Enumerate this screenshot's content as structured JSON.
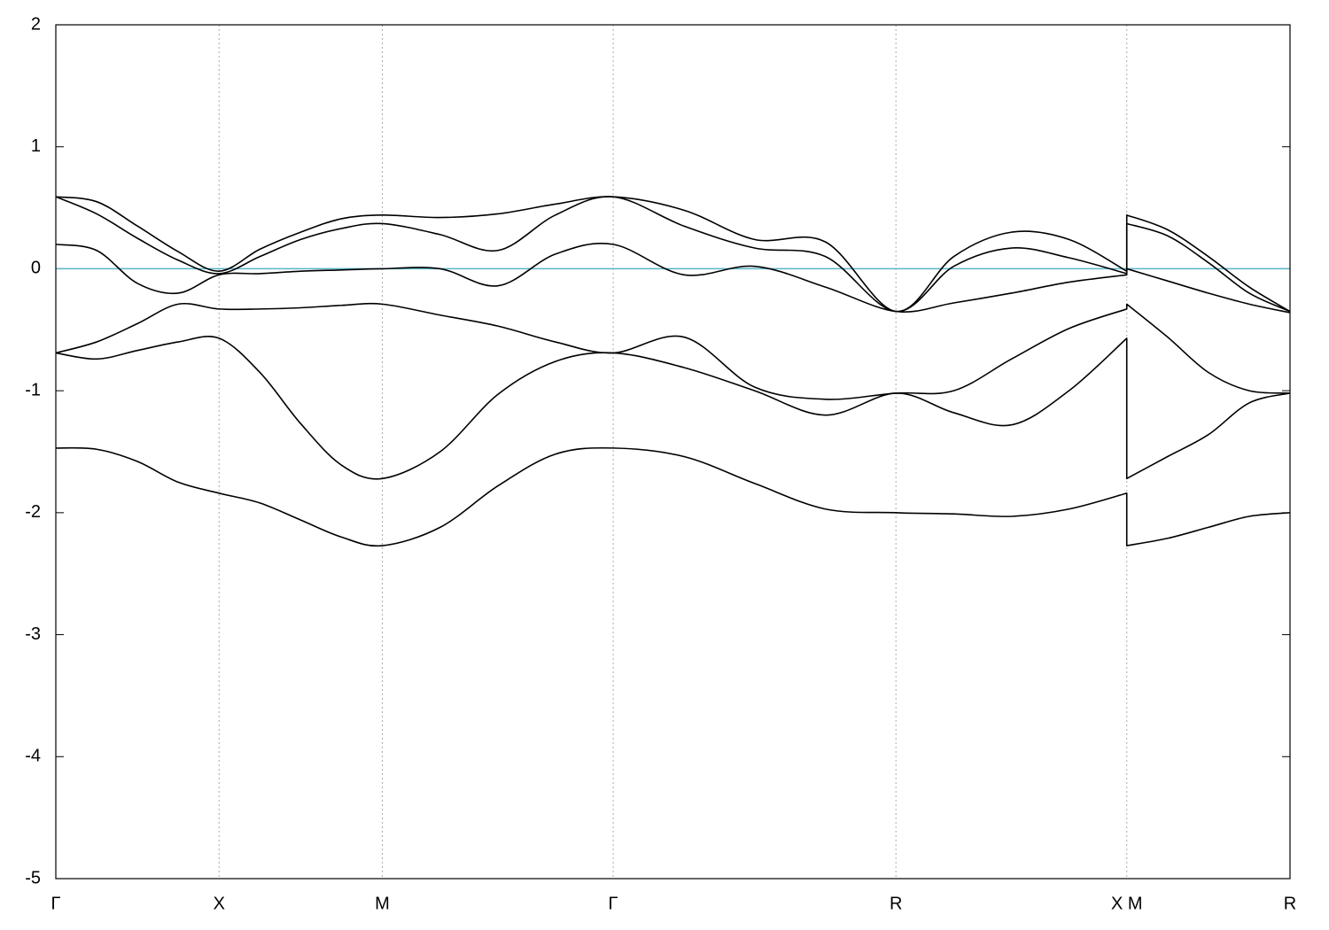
{
  "chart_data": {
    "type": "line",
    "xlim": [
      0,
      3.78
    ],
    "ylim": [
      -5,
      2
    ],
    "yticks": [
      -5,
      -4,
      -3,
      -2,
      -1,
      0,
      1,
      2
    ],
    "xticks": [
      {
        "value": 0,
        "label": "Γ"
      },
      {
        "value": 0.5,
        "label": "X"
      },
      {
        "value": 1.0,
        "label": "M"
      },
      {
        "value": 1.707,
        "label": "Γ"
      },
      {
        "value": 2.573,
        "label": "R"
      },
      {
        "value": 3.28,
        "label": "X M"
      },
      {
        "value": 3.78,
        "label": "R"
      }
    ],
    "xgrid": true,
    "reference_line": {
      "value": 0,
      "color": "#5ab4c8"
    },
    "x": [
      0,
      0.125,
      0.25,
      0.375,
      0.5,
      0.625,
      0.75,
      0.875,
      1.0,
      1.177,
      1.354,
      1.53,
      1.707,
      1.924,
      2.14,
      2.357,
      2.573,
      2.75,
      2.927,
      3.103,
      3.28,
      3.28,
      3.405,
      3.53,
      3.655,
      3.78
    ],
    "series": [
      {
        "color": "#000000",
        "values": [
          -1.47,
          -1.48,
          -1.58,
          -1.75,
          -1.84,
          -1.92,
          -2.06,
          -2.2,
          -2.27,
          -2.12,
          -1.78,
          -1.52,
          -1.47,
          -1.54,
          -1.76,
          -1.97,
          -2.0,
          -2.01,
          -2.03,
          -1.97,
          -1.84,
          -2.27,
          -2.21,
          -2.12,
          -2.03,
          -2.0
        ]
      },
      {
        "color": "#000000",
        "values": [
          -0.69,
          -0.74,
          -0.67,
          -0.6,
          -0.57,
          -0.85,
          -1.27,
          -1.61,
          -1.72,
          -1.5,
          -1.03,
          -0.76,
          -0.69,
          -0.81,
          -1.0,
          -1.2,
          -1.02,
          -1.18,
          -1.28,
          -1.0,
          -0.57,
          -1.72,
          -1.54,
          -1.36,
          -1.1,
          -1.02
        ]
      },
      {
        "color": "#000000",
        "values": [
          -0.69,
          -0.6,
          -0.45,
          -0.29,
          -0.33,
          -0.33,
          -0.32,
          -0.3,
          -0.29,
          -0.38,
          -0.47,
          -0.6,
          -0.69,
          -0.56,
          -0.97,
          -1.07,
          -1.02,
          -1.0,
          -0.74,
          -0.49,
          -0.33,
          -0.29,
          -0.56,
          -0.85,
          -1.0,
          -1.02
        ]
      },
      {
        "color": "#000000",
        "values": [
          0.2,
          0.15,
          -0.12,
          -0.2,
          -0.05,
          -0.04,
          -0.02,
          -0.01,
          0.0,
          0.0,
          -0.14,
          0.12,
          0.2,
          -0.05,
          0.02,
          -0.15,
          -0.35,
          -0.28,
          -0.2,
          -0.11,
          -0.05,
          0.0,
          -0.1,
          -0.2,
          -0.29,
          -0.36
        ]
      },
      {
        "color": "#000000",
        "values": [
          0.59,
          0.45,
          0.25,
          0.07,
          -0.04,
          0.1,
          0.24,
          0.33,
          0.37,
          0.28,
          0.15,
          0.44,
          0.59,
          0.35,
          0.17,
          0.1,
          -0.35,
          0.02,
          0.17,
          0.09,
          -0.04,
          0.37,
          0.27,
          0.05,
          -0.2,
          -0.35
        ]
      },
      {
        "color": "#000000",
        "values": [
          0.59,
          0.55,
          0.35,
          0.14,
          -0.02,
          0.16,
          0.3,
          0.41,
          0.44,
          0.42,
          0.45,
          0.53,
          0.59,
          0.48,
          0.24,
          0.22,
          -0.35,
          0.1,
          0.3,
          0.24,
          -0.02,
          0.44,
          0.32,
          0.1,
          -0.15,
          -0.35
        ]
      }
    ]
  }
}
